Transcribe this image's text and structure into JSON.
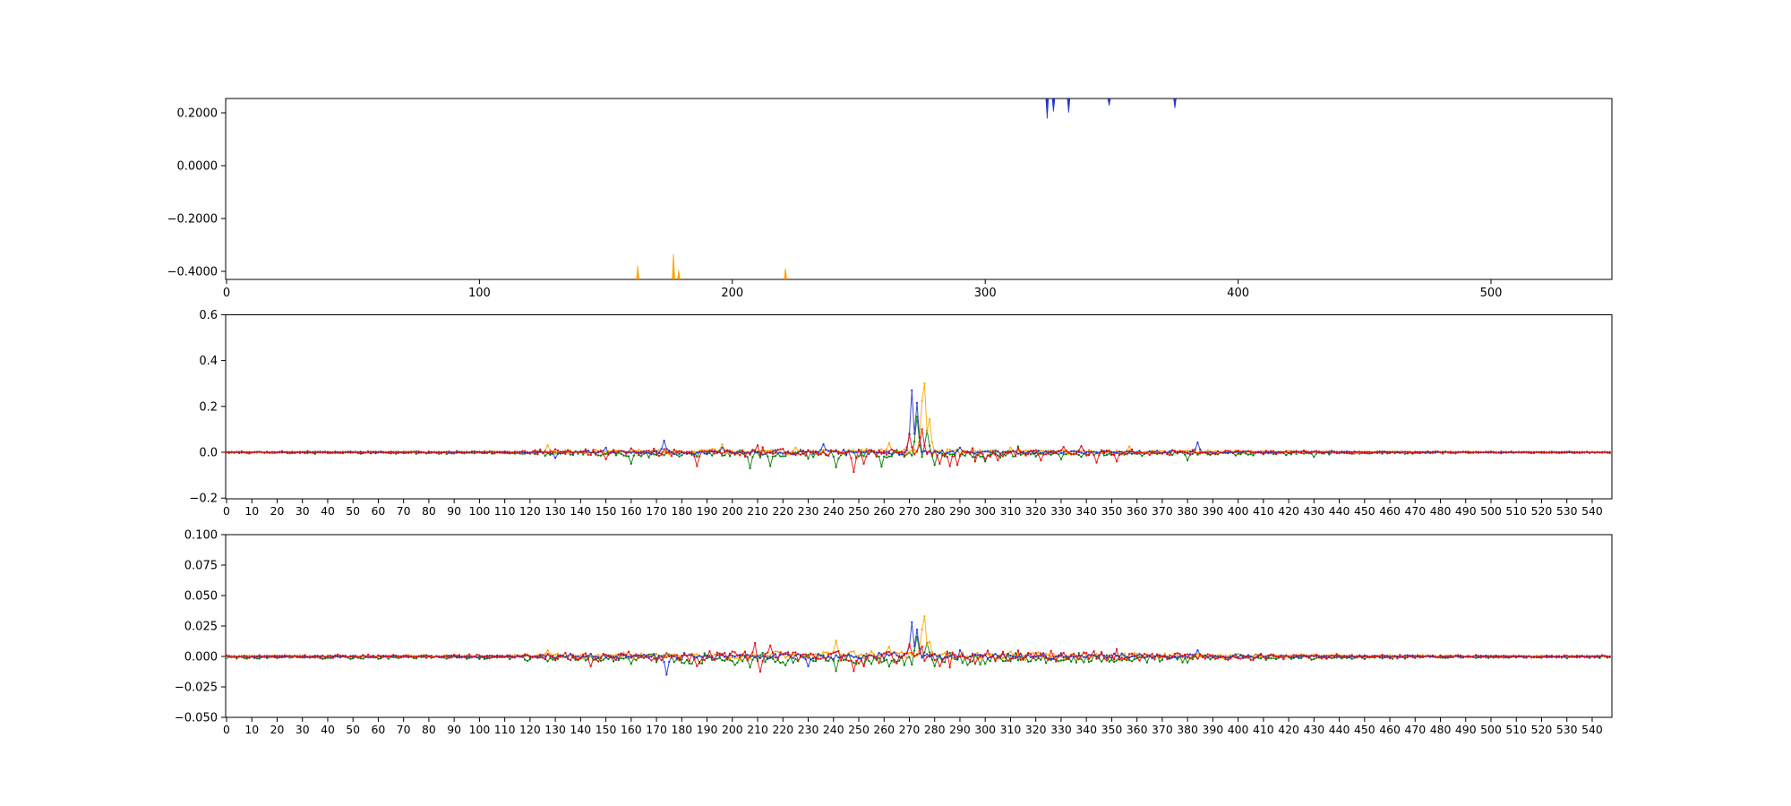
{
  "figure": {
    "background": "#ffffff",
    "spine_color": "#000000",
    "tick_color": "#000000",
    "channel_colors": {
      "blue": "#2336cf",
      "orange": "#ffa500",
      "green": "#0a7d0a",
      "red": "#e41010"
    }
  },
  "chart_data": [
    {
      "id": "top",
      "type": "line",
      "xlim": [
        0,
        548
      ],
      "ylim": [
        -0.431,
        0.254
      ],
      "xtick_values": [
        0,
        100,
        200,
        300,
        400,
        500
      ],
      "xtick_labels": [
        "0",
        "100",
        "200",
        "300",
        "400",
        "500"
      ],
      "ytick_values": [
        0.2,
        0.0,
        -0.2,
        -0.4
      ],
      "ytick_labels": [
        "0.2000",
        "0.0000",
        "−0.2000",
        "−0.4000"
      ],
      "series": [
        {
          "name": "clipped-spikes-from-top",
          "color": "blue",
          "spikes": [
            {
              "x": 324.5,
              "tip": 0.178
            },
            {
              "x": 327,
              "tip": 0.205
            },
            {
              "x": 333,
              "tip": 0.201
            },
            {
              "x": 349,
              "tip": 0.228
            },
            {
              "x": 375,
              "tip": 0.218
            }
          ]
        },
        {
          "name": "clipped-spikes-from-bottom",
          "color": "orange",
          "spikes": [
            {
              "x": 162.6,
              "tip": -0.379
            },
            {
              "x": 176.7,
              "tip": -0.335
            },
            {
              "x": 178.8,
              "tip": -0.396
            },
            {
              "x": 221,
              "tip": -0.389
            }
          ]
        }
      ]
    },
    {
      "id": "middle",
      "type": "line",
      "xlim": [
        0,
        548
      ],
      "ylim": [
        -0.2,
        0.6
      ],
      "xtick_values": [
        0,
        10,
        20,
        30,
        40,
        50,
        60,
        70,
        80,
        90,
        100,
        110,
        120,
        130,
        140,
        150,
        160,
        170,
        180,
        190,
        200,
        210,
        220,
        230,
        240,
        250,
        260,
        270,
        280,
        290,
        300,
        310,
        320,
        330,
        340,
        350,
        360,
        370,
        380,
        390,
        400,
        410,
        420,
        430,
        440,
        450,
        460,
        470,
        480,
        490,
        500,
        510,
        520,
        530,
        540
      ],
      "ytick_values": [
        0.6,
        0.4,
        0.2,
        0.0,
        -0.2
      ],
      "ytick_labels": [
        "0.6",
        "0.4",
        "0.2",
        "0.0",
        "−0.2"
      ],
      "n_positions": 548,
      "envelope": [
        [
          0,
          0.004
        ],
        [
          110,
          0.005
        ],
        [
          125,
          0.01
        ],
        [
          155,
          0.013
        ],
        [
          200,
          0.016
        ],
        [
          240,
          0.018
        ],
        [
          290,
          0.016
        ],
        [
          330,
          0.013
        ],
        [
          370,
          0.011
        ],
        [
          410,
          0.008
        ],
        [
          450,
          0.005
        ],
        [
          500,
          0.0035
        ],
        [
          548,
          0.003
        ]
      ],
      "channels": [
        {
          "name": "green",
          "seed": 33,
          "amp": 1.25,
          "bias": -0.5,
          "features": [
            [
              160,
              -0.05
            ],
            [
              207,
              -0.07
            ],
            [
              215,
              -0.06
            ],
            [
              241,
              -0.065
            ],
            [
              258.5,
              -0.062
            ],
            [
              272.8,
              0.155
            ],
            [
              277,
              0.095
            ],
            [
              280.4,
              -0.055
            ],
            [
              300,
              -0.04
            ],
            [
              313,
              0.025
            ],
            [
              330,
              -0.03
            ],
            [
              380,
              -0.035
            ],
            [
              430,
              -0.02
            ]
          ]
        },
        {
          "name": "orange",
          "seed": 22,
          "amp": 0.85,
          "bias": 0.18,
          "features": [
            [
              127,
              0.03
            ],
            [
              196,
              0.035
            ],
            [
              225,
              0.02
            ],
            [
              262,
              0.04
            ],
            [
              274.5,
              0.225
            ],
            [
              276,
              0.3
            ],
            [
              277.5,
              0.145
            ],
            [
              310,
              0.02
            ],
            [
              357,
              0.025
            ]
          ]
        },
        {
          "name": "blue",
          "seed": 11,
          "amp": 0.75,
          "bias": 0.05,
          "features": [
            [
              130,
              -0.025
            ],
            [
              150,
              0.02
            ],
            [
              173,
              0.05
            ],
            [
              196,
              0.02
            ],
            [
              236,
              0.035
            ],
            [
              271,
              0.27
            ],
            [
              272.5,
              0.215
            ],
            [
              290,
              0.02
            ],
            [
              384,
              0.042
            ]
          ]
        },
        {
          "name": "red",
          "seed": 44,
          "amp": 1.35,
          "bias": 0,
          "features": [
            [
              150,
              -0.03
            ],
            [
              186,
              -0.06
            ],
            [
              210,
              0.03
            ],
            [
              247.5,
              -0.086
            ],
            [
              252,
              -0.05
            ],
            [
              270,
              0.075
            ],
            [
              275,
              0.1
            ],
            [
              282,
              -0.05
            ],
            [
              286,
              -0.06
            ],
            [
              289,
              -0.055
            ],
            [
              296,
              -0.04
            ],
            [
              300,
              -0.03
            ],
            [
              305,
              -0.035
            ],
            [
              322,
              -0.035
            ],
            [
              331,
              0.023
            ],
            [
              338,
              0.027
            ],
            [
              344,
              -0.045
            ],
            [
              352,
              -0.04
            ]
          ]
        }
      ]
    },
    {
      "id": "bottom",
      "type": "line",
      "xlim": [
        0,
        548
      ],
      "ylim": [
        -0.05,
        0.1
      ],
      "xtick_values": [
        0,
        10,
        20,
        30,
        40,
        50,
        60,
        70,
        80,
        90,
        100,
        110,
        120,
        130,
        140,
        150,
        160,
        170,
        180,
        190,
        200,
        210,
        220,
        230,
        240,
        250,
        260,
        270,
        280,
        290,
        300,
        310,
        320,
        330,
        340,
        350,
        360,
        370,
        380,
        390,
        400,
        410,
        420,
        430,
        440,
        450,
        460,
        470,
        480,
        490,
        500,
        510,
        520,
        530,
        540
      ],
      "ytick_values": [
        0.1,
        0.075,
        0.05,
        0.025,
        0.0,
        -0.025,
        -0.05
      ],
      "ytick_labels": [
        "0.100",
        "0.075",
        "0.050",
        "0.025",
        "0.000",
        "−0.025",
        "−0.050"
      ],
      "n_positions": 548,
      "envelope": [
        [
          0,
          0.0012
        ],
        [
          110,
          0.0015
        ],
        [
          125,
          0.0028
        ],
        [
          155,
          0.0035
        ],
        [
          200,
          0.0045
        ],
        [
          240,
          0.005
        ],
        [
          290,
          0.0045
        ],
        [
          330,
          0.004
        ],
        [
          370,
          0.003
        ],
        [
          410,
          0.0022
        ],
        [
          450,
          0.0015
        ],
        [
          500,
          0.001
        ],
        [
          548,
          0.001
        ]
      ],
      "channels": [
        {
          "name": "green",
          "seed": 77,
          "amp": 1.25,
          "bias": -0.5,
          "features": [
            [
              160,
              -0.006
            ],
            [
              207,
              -0.009
            ],
            [
              241,
              -0.012
            ],
            [
              272.8,
              0.016
            ],
            [
              277,
              0.011
            ],
            [
              280.4,
              -0.008
            ],
            [
              300,
              -0.006
            ],
            [
              380,
              -0.005
            ]
          ]
        },
        {
          "name": "orange",
          "seed": 66,
          "amp": 0.85,
          "bias": 0.18,
          "features": [
            [
              127,
              0.005
            ],
            [
              241,
              0.013
            ],
            [
              262,
              0.008
            ],
            [
              274.5,
              0.022
            ],
            [
              276,
              0.033
            ],
            [
              277.5,
              0.012
            ],
            [
              310,
              0.004
            ]
          ]
        },
        {
          "name": "blue",
          "seed": 55,
          "amp": 0.75,
          "bias": 0.05,
          "features": [
            [
              174,
              -0.015
            ],
            [
              230,
              -0.008
            ],
            [
              271,
              0.028
            ],
            [
              272.5,
              0.022
            ],
            [
              290,
              0.005
            ],
            [
              384,
              0.005
            ]
          ]
        },
        {
          "name": "red",
          "seed": 88,
          "amp": 1.35,
          "bias": 0,
          "features": [
            [
              144,
              -0.008
            ],
            [
              186,
              -0.008
            ],
            [
              209,
              0.011
            ],
            [
              211,
              -0.0125
            ],
            [
              215,
              0.009
            ],
            [
              247.5,
              -0.012
            ],
            [
              252,
              -0.008
            ],
            [
              270,
              0.01
            ],
            [
              275,
              0.008
            ],
            [
              282,
              -0.008
            ],
            [
              286,
              -0.009
            ],
            [
              296,
              -0.006
            ],
            [
              352,
              0.006
            ]
          ]
        }
      ]
    }
  ]
}
